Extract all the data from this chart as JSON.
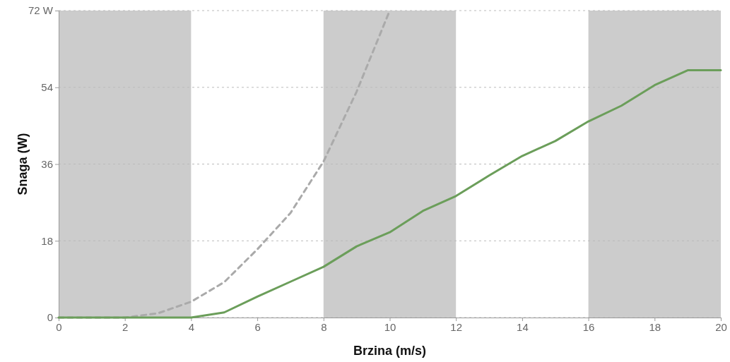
{
  "chart_data": {
    "type": "line",
    "xlabel": "Brzina (m/s)",
    "ylabel": "Snaga (W)",
    "x": [
      0,
      1,
      2,
      3,
      4,
      5,
      6,
      7,
      8,
      9,
      10,
      11,
      12,
      13,
      14,
      15,
      16,
      17,
      18,
      19,
      20
    ],
    "series": [
      {
        "color": "#aaaaaa",
        "line_style": "dashed",
        "x": [
          0,
          1,
          2,
          3,
          4,
          5,
          6,
          7,
          8,
          9,
          10
        ],
        "values": [
          0,
          0,
          0,
          1,
          3.7,
          8.3,
          16,
          24.5,
          36.6,
          53,
          72
        ]
      },
      {
        "color": "#6b9e5a",
        "line_style": "solid",
        "values": [
          0,
          0,
          0,
          0,
          0,
          1.2,
          4.9,
          8.4,
          11.9,
          16.7,
          20,
          25,
          28.5,
          33.3,
          37.9,
          41.4,
          46,
          49.7,
          54.5,
          58,
          58
        ]
      }
    ],
    "xlim": [
      0,
      20
    ],
    "xticks": [
      0,
      2,
      4,
      6,
      8,
      10,
      12,
      14,
      16,
      18,
      20
    ],
    "ylim": [
      0,
      72
    ],
    "yticks": [
      0,
      18,
      36,
      54,
      {
        "value": 72,
        "label": "72 W"
      }
    ],
    "grid": "y",
    "marker": "none",
    "bands": [
      {
        "axis": "x",
        "from": 0,
        "to": 4,
        "color": "#cccccc"
      },
      {
        "axis": "x",
        "from": 8,
        "to": 12,
        "color": "#cccccc"
      },
      {
        "axis": "x",
        "from": 16,
        "to": 20,
        "color": "#cccccc"
      }
    ]
  }
}
